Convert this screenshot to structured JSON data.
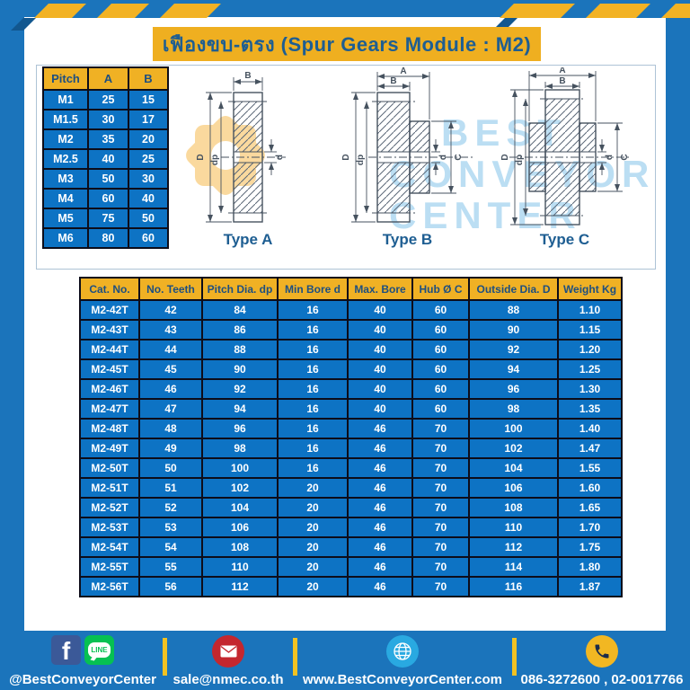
{
  "title": "เฟืองขบ-ตรง (Spur Gears Module : M2)",
  "colors": {
    "page_blue": "#1B74BB",
    "hazard_yellow": "#F2B224",
    "title_yellow": "#EFAF20",
    "table_header_yellow": "#F0B124",
    "cell_blue": "#0D73C4",
    "dark_blue_text": "#1E5E92",
    "footer_divider_yellow": "#F2C222",
    "facebook_blue": "#3B5998",
    "line_green": "#06C152",
    "mail_red": "#C4272F",
    "globe_blue": "#29A9E1",
    "phone_yellow": "#F2B722"
  },
  "pitch_table": {
    "headers": [
      "Pitch",
      "A",
      "B"
    ],
    "rows": [
      [
        "M1",
        "25",
        "15"
      ],
      [
        "M1.5",
        "30",
        "17"
      ],
      [
        "M2",
        "35",
        "20"
      ],
      [
        "M2.5",
        "40",
        "25"
      ],
      [
        "M3",
        "50",
        "30"
      ],
      [
        "M4",
        "60",
        "40"
      ],
      [
        "M5",
        "75",
        "50"
      ],
      [
        "M6",
        "80",
        "60"
      ]
    ]
  },
  "drawings": {
    "types": [
      {
        "label": "Type A"
      },
      {
        "label": "Type B"
      },
      {
        "label": "Type C"
      }
    ],
    "dim_labels": {
      "A": "A",
      "B": "B",
      "C": "C",
      "D": "D",
      "d": "d",
      "dp": "dp"
    },
    "watermark": {
      "lines": [
        "BEST",
        "CONVEYOR",
        "CENTER"
      ]
    }
  },
  "gear_table": {
    "headers": [
      "Cat. No.",
      "No. Teeth",
      "Pitch Dia. dp",
      "Min Bore d",
      "Max. Bore",
      "Hub Ø C",
      "Outside Dia. D",
      "Weight Kg"
    ],
    "rows": [
      [
        "M2-42T",
        "42",
        "84",
        "16",
        "40",
        "60",
        "88",
        "1.10"
      ],
      [
        "M2-43T",
        "43",
        "86",
        "16",
        "40",
        "60",
        "90",
        "1.15"
      ],
      [
        "M2-44T",
        "44",
        "88",
        "16",
        "40",
        "60",
        "92",
        "1.20"
      ],
      [
        "M2-45T",
        "45",
        "90",
        "16",
        "40",
        "60",
        "94",
        "1.25"
      ],
      [
        "M2-46T",
        "46",
        "92",
        "16",
        "40",
        "60",
        "96",
        "1.30"
      ],
      [
        "M2-47T",
        "47",
        "94",
        "16",
        "40",
        "60",
        "98",
        "1.35"
      ],
      [
        "M2-48T",
        "48",
        "96",
        "16",
        "46",
        "70",
        "100",
        "1.40"
      ],
      [
        "M2-49T",
        "49",
        "98",
        "16",
        "46",
        "70",
        "102",
        "1.47"
      ],
      [
        "M2-50T",
        "50",
        "100",
        "16",
        "46",
        "70",
        "104",
        "1.55"
      ],
      [
        "M2-51T",
        "51",
        "102",
        "20",
        "46",
        "70",
        "106",
        "1.60"
      ],
      [
        "M2-52T",
        "52",
        "104",
        "20",
        "46",
        "70",
        "108",
        "1.65"
      ],
      [
        "M2-53T",
        "53",
        "106",
        "20",
        "46",
        "70",
        "110",
        "1.70"
      ],
      [
        "M2-54T",
        "54",
        "108",
        "20",
        "46",
        "70",
        "112",
        "1.75"
      ],
      [
        "M2-55T",
        "55",
        "110",
        "20",
        "46",
        "70",
        "114",
        "1.80"
      ],
      [
        "M2-56T",
        "56",
        "112",
        "20",
        "46",
        "70",
        "116",
        "1.87"
      ]
    ]
  },
  "footer": {
    "facebook_letter": "f",
    "line_label": "LINE",
    "social_label": "@BestConveyorCenter",
    "email": "sale@nmec.co.th",
    "website": "www.BestConveyorCenter.com",
    "phones": "086-3272600 , 02-0017766"
  }
}
